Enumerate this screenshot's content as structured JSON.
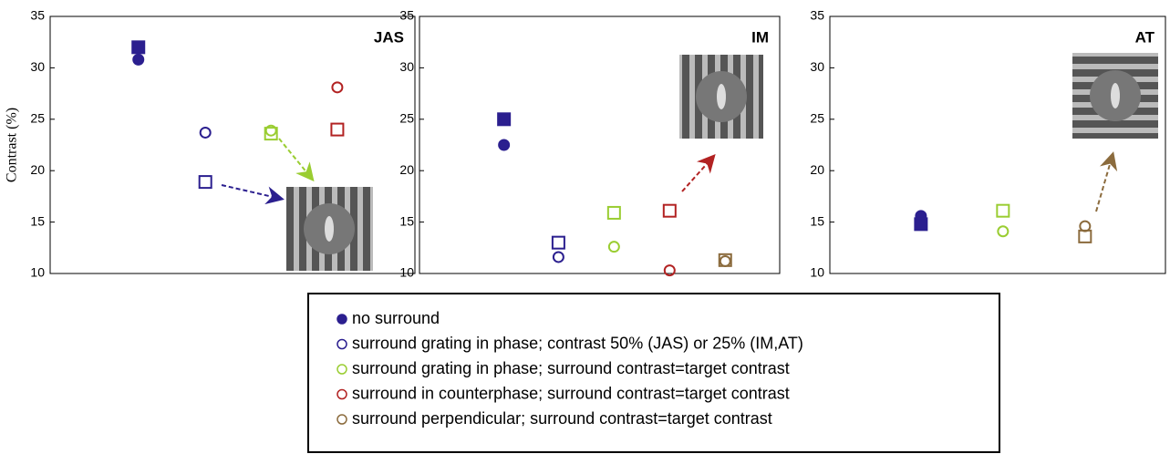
{
  "chart_data": [
    {
      "type": "scatter",
      "title": "JAS",
      "ylabel": "Contrast (%)",
      "xlim": [
        0,
        5.5
      ],
      "ylim": [
        10,
        35
      ],
      "yticks": [
        10,
        15,
        20,
        25,
        30,
        35
      ],
      "series": [
        {
          "color": "#2b1f8f",
          "filled": true,
          "markers": [
            "circle",
            "square"
          ],
          "x": [
            1.33,
            1.33
          ],
          "values": [
            30.8,
            32
          ]
        },
        {
          "color": "#2b1f8f",
          "filled": false,
          "markers": [
            "circle",
            "square"
          ],
          "x": [
            2.34,
            2.34
          ],
          "values": [
            23.7,
            18.9
          ]
        },
        {
          "color": "#9acd32",
          "filled": false,
          "markers": [
            "circle",
            "square"
          ],
          "x": [
            3.33,
            3.33
          ],
          "values": [
            23.9,
            23.6
          ]
        },
        {
          "color": "#b22222",
          "filled": false,
          "markers": [
            "circle",
            "square"
          ],
          "x": [
            4.33,
            4.33
          ],
          "values": [
            28.1,
            24
          ]
        }
      ]
    },
    {
      "type": "scatter",
      "title": "IM",
      "xlim": [
        0,
        6.48
      ],
      "ylim": [
        10,
        35
      ],
      "yticks": [
        10,
        15,
        20,
        25,
        30,
        35
      ],
      "series": [
        {
          "color": "#2b1f8f",
          "filled": true,
          "markers": [
            "circle",
            "square"
          ],
          "x": [
            1.52,
            1.52
          ],
          "values": [
            22.5,
            25
          ]
        },
        {
          "color": "#2b1f8f",
          "filled": false,
          "markers": [
            "circle",
            "square"
          ],
          "x": [
            2.5,
            2.5
          ],
          "values": [
            11.6,
            13
          ]
        },
        {
          "color": "#9acd32",
          "filled": false,
          "markers": [
            "circle",
            "square"
          ],
          "x": [
            3.5,
            3.5
          ],
          "values": [
            12.6,
            15.9
          ]
        },
        {
          "color": "#b22222",
          "filled": false,
          "markers": [
            "circle",
            "square"
          ],
          "x": [
            4.5,
            4.5
          ],
          "values": [
            10.3,
            16.1
          ]
        },
        {
          "color": "#8b6b3d",
          "filled": false,
          "markers": [
            "circle",
            "square"
          ],
          "x": [
            5.5,
            5.5
          ],
          "values": [
            11.2,
            11.3
          ]
        }
      ]
    },
    {
      "type": "scatter",
      "title": "AT",
      "xlim": [
        0,
        4.09
      ],
      "ylim": [
        10,
        35
      ],
      "yticks": [
        10,
        15,
        20,
        25,
        30,
        35
      ],
      "series": [
        {
          "color": "#2b1f8f",
          "filled": true,
          "markers": [
            "circle",
            "square"
          ],
          "x": [
            1.11,
            1.11
          ],
          "values": [
            15.6,
            14.8
          ]
        },
        {
          "color": "#9acd32",
          "filled": false,
          "markers": [
            "circle",
            "square"
          ],
          "x": [
            2.11,
            2.11
          ],
          "values": [
            14.1,
            16.1
          ]
        },
        {
          "color": "#8b6b3d",
          "filled": false,
          "markers": [
            "circle",
            "square"
          ],
          "x": [
            3.11,
            3.11
          ],
          "values": [
            14.6,
            13.6
          ]
        }
      ]
    }
  ],
  "legend": [
    {
      "label": "no surround",
      "color": "#2b1f8f",
      "filled": true
    },
    {
      "label": "surround grating in phase; contrast 50% (JAS) or 25% (IM,AT)",
      "color": "#2b1f8f",
      "filled": false
    },
    {
      "label": "surround grating in phase; surround contrast=target contrast",
      "color": "#9acd32",
      "filled": false
    },
    {
      "label": "surround in counterphase; surround contrast=target contrast",
      "color": "#b22222",
      "filled": false
    },
    {
      "label": "surround  perpendicular; surround contrast=target contrast",
      "color": "#8b6b3d",
      "filled": false
    }
  ]
}
